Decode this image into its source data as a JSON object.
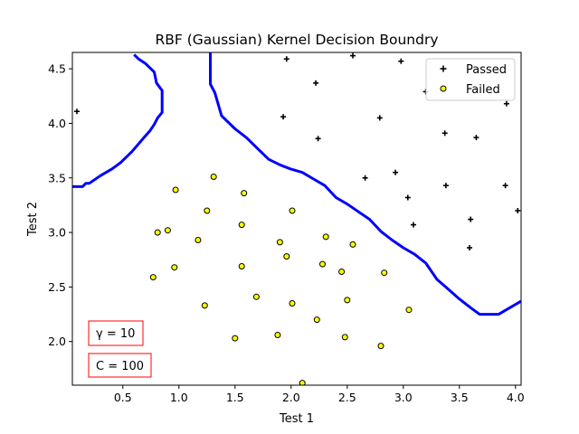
{
  "chart_data": {
    "type": "scatter",
    "title": "RBF (Gaussian)  Kernel Decision Boundry",
    "xlabel": "Test 1",
    "ylabel": "Test 2",
    "xlim": [
      0.05,
      4.05
    ],
    "ylim": [
      1.6,
      4.65
    ],
    "xticks": [
      0.5,
      1.0,
      1.5,
      2.0,
      2.5,
      3.0,
      3.5,
      4.0
    ],
    "xtick_labels": [
      "0.5",
      "1.0",
      "1.5",
      "2.0",
      "2.5",
      "3.0",
      "3.5",
      "4.0"
    ],
    "yticks": [
      2.0,
      2.5,
      3.0,
      3.5,
      4.0,
      4.5
    ],
    "ytick_labels": [
      "2.0",
      "2.5",
      "3.0",
      "3.5",
      "4.0",
      "4.5"
    ],
    "grid": false,
    "legend_position": "top-right",
    "series": [
      {
        "name": "Passed",
        "marker": "plus",
        "color": "#000000",
        "points": [
          [
            0.09,
            4.11
          ],
          [
            1.96,
            4.59
          ],
          [
            2.55,
            4.62
          ],
          [
            2.98,
            4.57
          ],
          [
            2.22,
            4.37
          ],
          [
            3.2,
            4.29
          ],
          [
            1.93,
            4.06
          ],
          [
            2.79,
            4.05
          ],
          [
            2.24,
            3.86
          ],
          [
            3.37,
            3.91
          ],
          [
            3.65,
            3.87
          ],
          [
            3.92,
            4.18
          ],
          [
            2.66,
            3.5
          ],
          [
            2.93,
            3.55
          ],
          [
            3.04,
            3.32
          ],
          [
            3.38,
            3.43
          ],
          [
            3.91,
            3.43
          ],
          [
            3.09,
            3.07
          ],
          [
            3.6,
            3.12
          ],
          [
            4.02,
            3.2
          ],
          [
            3.59,
            2.86
          ]
        ]
      },
      {
        "name": "Failed",
        "marker": "circle",
        "color": "#ffff00",
        "edge_color": "#000000",
        "points": [
          [
            1.31,
            3.51
          ],
          [
            0.97,
            3.39
          ],
          [
            1.58,
            3.36
          ],
          [
            1.25,
            3.2
          ],
          [
            2.01,
            3.2
          ],
          [
            0.81,
            3.0
          ],
          [
            0.9,
            3.02
          ],
          [
            1.56,
            3.07
          ],
          [
            1.17,
            2.93
          ],
          [
            2.31,
            2.96
          ],
          [
            1.9,
            2.91
          ],
          [
            2.55,
            2.89
          ],
          [
            1.96,
            2.78
          ],
          [
            0.77,
            2.59
          ],
          [
            0.96,
            2.68
          ],
          [
            1.56,
            2.69
          ],
          [
            2.28,
            2.71
          ],
          [
            2.45,
            2.64
          ],
          [
            2.83,
            2.63
          ],
          [
            1.69,
            2.41
          ],
          [
            2.01,
            2.35
          ],
          [
            2.5,
            2.38
          ],
          [
            1.23,
            2.33
          ],
          [
            3.05,
            2.29
          ],
          [
            2.23,
            2.2
          ],
          [
            1.5,
            2.03
          ],
          [
            1.88,
            2.06
          ],
          [
            2.48,
            2.04
          ],
          [
            2.8,
            1.96
          ],
          [
            2.1,
            1.62
          ]
        ]
      }
    ],
    "decision_boundary": {
      "color": "#0000ff",
      "segments": [
        [
          [
            0.05,
            3.42
          ],
          [
            0.14,
            3.42
          ],
          [
            0.17,
            3.45
          ],
          [
            0.2,
            3.45
          ],
          [
            0.3,
            3.52
          ],
          [
            0.4,
            3.58
          ],
          [
            0.48,
            3.64
          ],
          [
            0.5,
            3.66
          ],
          [
            0.58,
            3.74
          ],
          [
            0.63,
            3.8
          ],
          [
            0.68,
            3.86
          ],
          [
            0.74,
            3.93
          ],
          [
            0.78,
            3.99
          ],
          [
            0.81,
            4.05
          ],
          [
            0.85,
            4.1
          ],
          [
            0.85,
            4.3
          ],
          [
            0.8,
            4.37
          ],
          [
            0.78,
            4.47
          ],
          [
            0.7,
            4.55
          ],
          [
            0.64,
            4.59
          ],
          [
            0.6,
            4.63
          ]
        ],
        [
          [
            1.28,
            4.65
          ],
          [
            1.28,
            4.36
          ],
          [
            1.32,
            4.28
          ],
          [
            1.38,
            4.07
          ],
          [
            1.5,
            3.95
          ],
          [
            1.6,
            3.87
          ],
          [
            1.7,
            3.77
          ],
          [
            1.8,
            3.67
          ],
          [
            1.9,
            3.62
          ],
          [
            2.0,
            3.58
          ],
          [
            2.1,
            3.55
          ],
          [
            2.2,
            3.49
          ],
          [
            2.3,
            3.43
          ],
          [
            2.4,
            3.32
          ],
          [
            2.5,
            3.26
          ],
          [
            2.6,
            3.19
          ],
          [
            2.7,
            3.12
          ],
          [
            2.8,
            3.01
          ],
          [
            2.9,
            2.93
          ],
          [
            3.0,
            2.86
          ],
          [
            3.1,
            2.8
          ],
          [
            3.2,
            2.72
          ],
          [
            3.3,
            2.57
          ],
          [
            3.4,
            2.48
          ],
          [
            3.5,
            2.39
          ],
          [
            3.6,
            2.31
          ],
          [
            3.68,
            2.25
          ],
          [
            3.75,
            2.25
          ],
          [
            3.85,
            2.25
          ],
          [
            3.95,
            2.31
          ],
          [
            4.05,
            2.37
          ]
        ]
      ]
    },
    "annotations": [
      {
        "text": "γ = 10",
        "color": "#ff0000"
      },
      {
        "text": "C = 100",
        "color": "#ff0000"
      }
    ]
  }
}
